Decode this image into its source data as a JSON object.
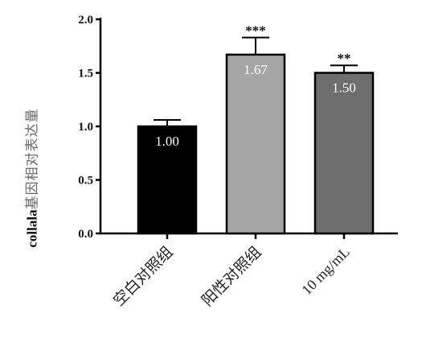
{
  "chart_data": {
    "type": "bar",
    "categories": [
      "空白对照组",
      "阳性对照组",
      "10 mg/mL"
    ],
    "values": [
      1.0,
      1.67,
      1.5
    ],
    "errors": [
      0.06,
      0.16,
      0.07
    ],
    "value_labels": [
      "1.00",
      "1.67",
      "1.50"
    ],
    "significance": [
      "",
      "***",
      "**"
    ],
    "bar_colors": [
      "#000000",
      "#a6a6a6",
      "#6e6e6e"
    ],
    "ylabel_bold": "collala",
    "ylabel_rest": "基因相对表达量",
    "ylim": [
      0,
      2.0
    ],
    "yticks": [
      "0.0",
      "0.5",
      "1.0",
      "1.5",
      "2.0"
    ],
    "ytick_values": [
      0,
      0.5,
      1.0,
      1.5,
      2.0
    ],
    "grid": false,
    "legend": "none"
  }
}
